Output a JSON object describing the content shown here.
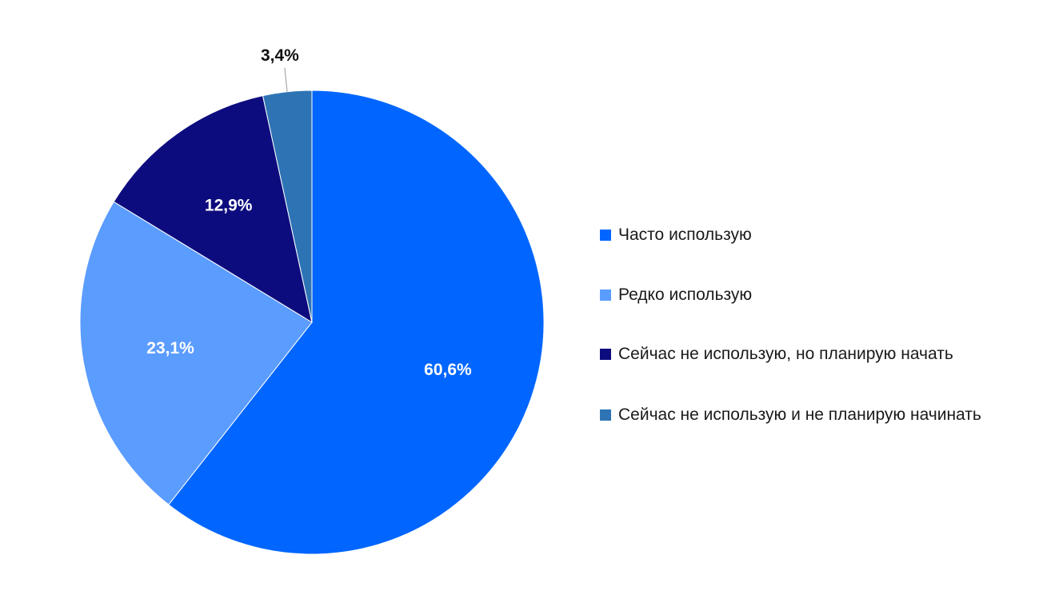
{
  "chart_data": {
    "type": "pie",
    "categories": [
      "Часто использую",
      "Редко использую",
      "Сейчас не использую, но планирую начать",
      "Сейчас не использую и не планирую начинать"
    ],
    "values": [
      60.6,
      23.1,
      12.9,
      3.4
    ],
    "value_labels": [
      "60,6%",
      "23,1%",
      "12,9%",
      "3,4%"
    ],
    "colors": [
      "#0066ff",
      "#5b9cff",
      "#0d0c7e",
      "#2e74b5"
    ],
    "start_angle": "12 o'clock",
    "direction": "clockwise",
    "legend_position": "right"
  }
}
